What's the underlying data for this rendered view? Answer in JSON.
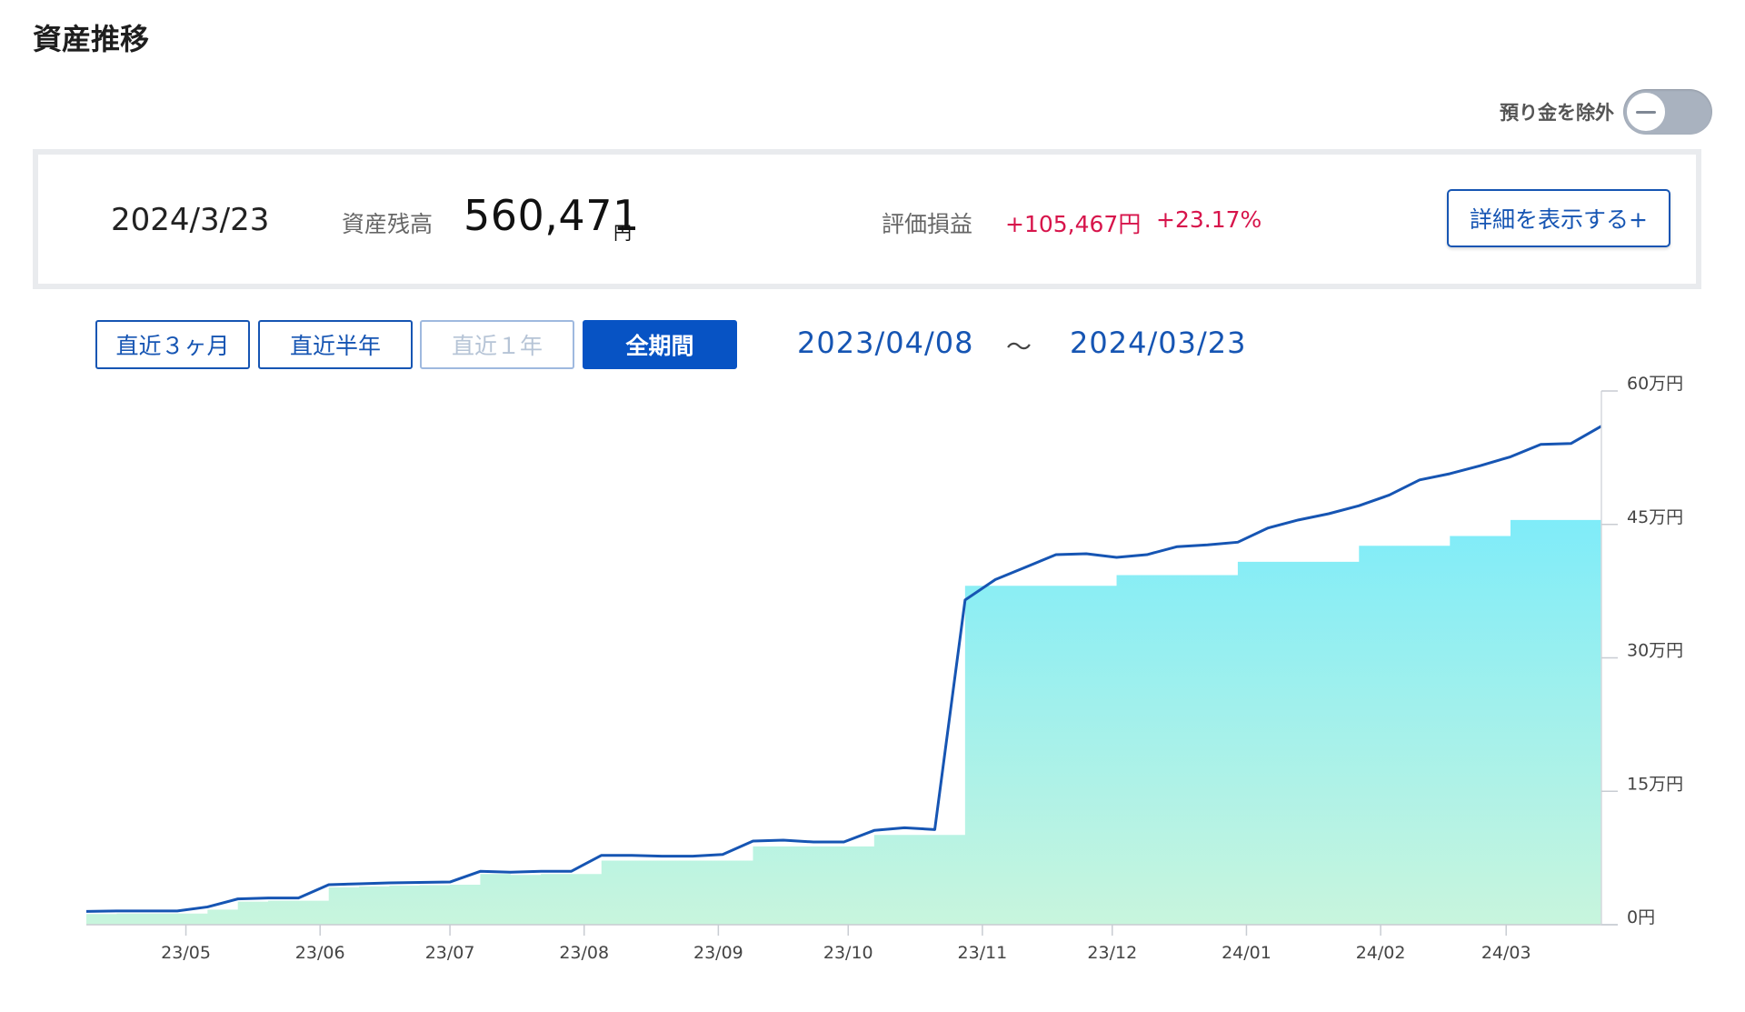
{
  "page": {
    "title": "資産推移"
  },
  "toggle": {
    "label": "預り金を除外",
    "state": "off"
  },
  "summary": {
    "date": "2024/3/23",
    "balance_label": "資産残高",
    "balance_value": "560,471",
    "balance_unit": "円",
    "pl_label": "評価損益",
    "pl_amount": "+105,467円",
    "pl_rate": "+23.17%",
    "detail_button": "詳細を表示する+"
  },
  "periods": [
    {
      "label": "直近３ヶ月",
      "state": "normal"
    },
    {
      "label": "直近半年",
      "state": "normal"
    },
    {
      "label": "直近１年",
      "state": "disabled"
    },
    {
      "label": "全期間",
      "state": "active"
    }
  ],
  "range": {
    "start": "2023/04/08",
    "separator": "〜",
    "end": "2024/03/23"
  },
  "colors": {
    "accent": "#0753c4",
    "line": "#1655b3",
    "gain": "#d7144b",
    "area_top": "#7fecf9",
    "area_bottom": "#c8f5dd"
  },
  "chart_data": {
    "type": "area",
    "title": "",
    "x_tick_labels": [
      "23/05",
      "23/06",
      "23/07",
      "23/08",
      "23/09",
      "23/10",
      "23/11",
      "23/12",
      "24/01",
      "24/02",
      "24/03"
    ],
    "y_tick_labels": [
      "0円",
      "15万円",
      "30万円",
      "45万円",
      "60万円"
    ],
    "ylim": [
      0,
      600000
    ],
    "x": [
      "2023-04-08",
      "2023-04-15",
      "2023-04-22",
      "2023-04-29",
      "2023-05-06",
      "2023-05-13",
      "2023-05-20",
      "2023-05-27",
      "2023-06-03",
      "2023-06-10",
      "2023-06-17",
      "2023-06-24",
      "2023-07-01",
      "2023-07-08",
      "2023-07-15",
      "2023-07-22",
      "2023-07-29",
      "2023-08-05",
      "2023-08-12",
      "2023-08-19",
      "2023-08-26",
      "2023-09-02",
      "2023-09-09",
      "2023-09-16",
      "2023-09-23",
      "2023-09-30",
      "2023-10-07",
      "2023-10-14",
      "2023-10-21",
      "2023-10-28",
      "2023-11-04",
      "2023-11-11",
      "2023-11-18",
      "2023-11-25",
      "2023-12-02",
      "2023-12-09",
      "2023-12-16",
      "2023-12-23",
      "2023-12-30",
      "2024-01-06",
      "2024-01-13",
      "2024-01-20",
      "2024-01-27",
      "2024-02-03",
      "2024-02-10",
      "2024-02-17",
      "2024-02-24",
      "2024-03-02",
      "2024-03-09",
      "2024-03-16",
      "2024-03-23"
    ],
    "series": [
      {
        "values": [
          15000,
          15500,
          15500,
          15500,
          20000,
          29000,
          30000,
          30000,
          45000,
          46000,
          47000,
          47500,
          48000,
          60000,
          59000,
          60000,
          60000,
          78000,
          78000,
          77000,
          77000,
          79000,
          94000,
          95000,
          93000,
          93000,
          106000,
          109000,
          107000,
          365000,
          388000,
          402000,
          416000,
          417000,
          413000,
          416000,
          425000,
          427000,
          430000,
          446000,
          455000,
          462000,
          471000,
          483000,
          500000,
          507000,
          516000,
          526000,
          540000,
          541000,
          560471
        ]
      },
      {
        "values": [
          12000,
          12500,
          12500,
          12500,
          17000,
          26000,
          27000,
          27000,
          42000,
          43000,
          44000,
          44500,
          45000,
          57000,
          56000,
          57000,
          57000,
          72000,
          72000,
          72000,
          72000,
          72000,
          88000,
          88000,
          88000,
          88000,
          101000,
          101000,
          101000,
          381000,
          381000,
          381000,
          381000,
          381000,
          393000,
          393000,
          393000,
          393000,
          408000,
          408000,
          408000,
          408000,
          426000,
          426000,
          426000,
          437000,
          437000,
          455000,
          455000,
          455000,
          455000
        ]
      }
    ],
    "grid": false
  }
}
